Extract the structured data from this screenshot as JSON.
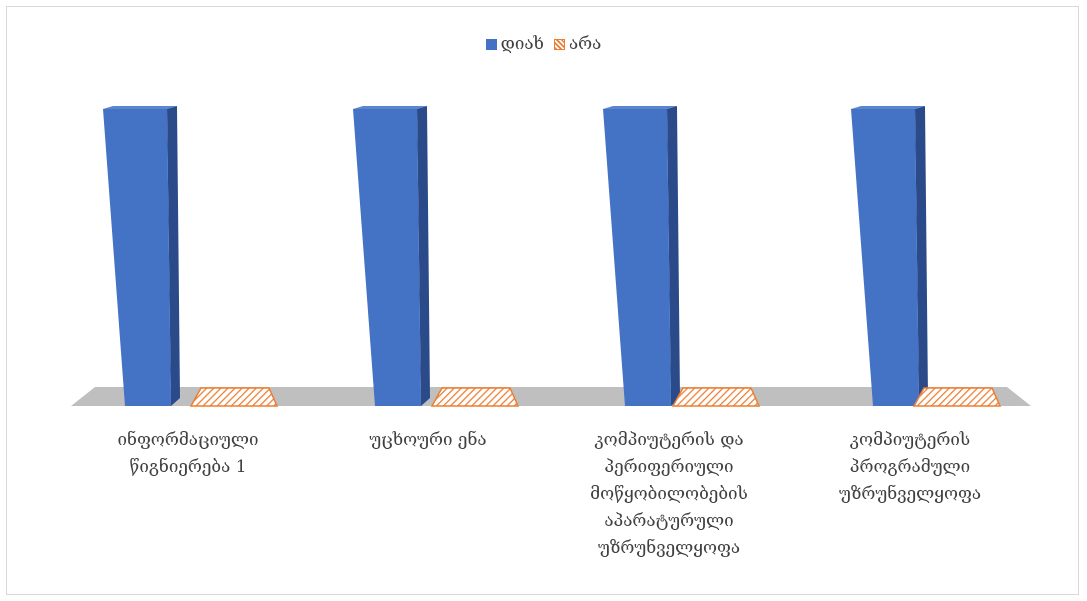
{
  "chart_data": {
    "type": "bar",
    "categories": [
      "ინფორმაციული\nწიგნიერება 1",
      "უცხოური ენა",
      "კომპიუტერის და\nპერიფერიული\nმოწყობილობების\nაპარატურული\nუზრუნველყოფა",
      "კომპიუტერის\nპროგრამული\nუზრუნველყოფა"
    ],
    "series": [
      {
        "name": "დიახ",
        "values": [
          100,
          100,
          100,
          100
        ],
        "color": "#4472c4"
      },
      {
        "name": "არა",
        "values": [
          0,
          0,
          0,
          0
        ],
        "color": "#ed7d31"
      }
    ],
    "ylim": [
      0,
      100
    ],
    "grid": false,
    "legend_position": "top",
    "floor_color": "#bfbfbf"
  }
}
